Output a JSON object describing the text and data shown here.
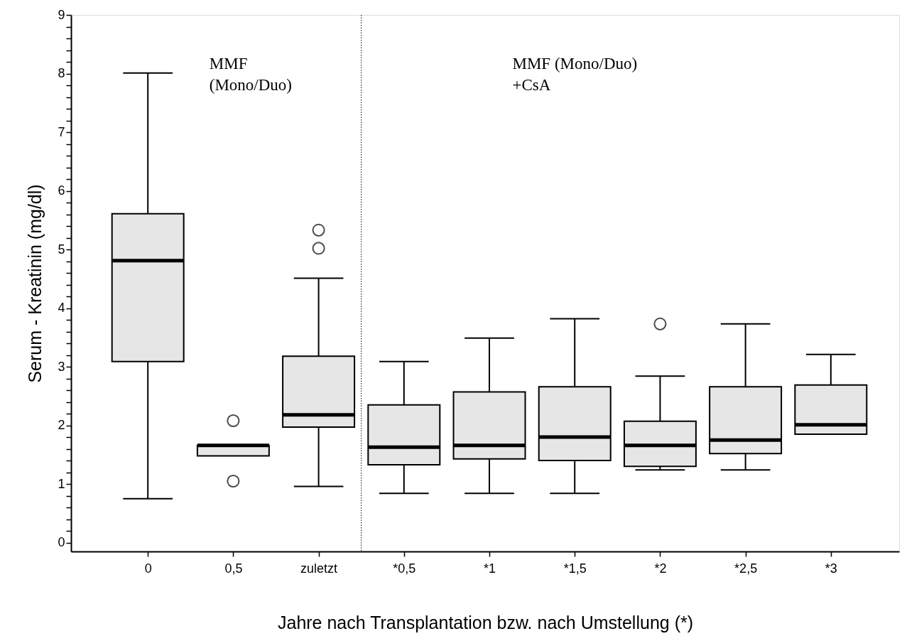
{
  "chart_data": {
    "type": "box",
    "xlabel": "Jahre nach Transplantation bzw. nach Umstellung (*)",
    "ylabel": "Serum - Kreatinin (mg/dl)",
    "categories": [
      "0",
      "0,5",
      "zuletzt",
      "*0,5",
      "*1",
      "*1,5",
      "*2",
      "*2,5",
      "*3"
    ],
    "series": [
      {
        "color": "#e6e6e6",
        "boxes": [
          {
            "low": 0.75,
            "q1": 3.09,
            "median": 4.81,
            "q3": 5.61,
            "high": 8.01
          },
          {
            "low": 1.48,
            "q1": 1.48,
            "median": 1.66,
            "q3": 1.66,
            "high": 1.66,
            "outliers": [
              2.08,
              1.05
            ]
          },
          {
            "low": 0.96,
            "q1": 1.97,
            "median": 2.18,
            "q3": 3.18,
            "high": 4.51,
            "outliers": [
              5.33,
              5.02
            ]
          },
          {
            "low": 0.84,
            "q1": 1.33,
            "median": 1.63,
            "q3": 2.35,
            "high": 3.09
          },
          {
            "low": 0.84,
            "q1": 1.43,
            "median": 1.66,
            "q3": 2.57,
            "high": 3.49
          },
          {
            "low": 0.84,
            "q1": 1.4,
            "median": 1.8,
            "q3": 2.66,
            "high": 3.82
          },
          {
            "low": 1.24,
            "q1": 1.3,
            "median": 1.66,
            "q3": 2.07,
            "high": 2.84,
            "outliers": [
              3.73
            ]
          },
          {
            "low": 1.24,
            "q1": 1.52,
            "median": 1.75,
            "q3": 2.66,
            "high": 3.73
          },
          {
            "low": 1.85,
            "q1": 1.85,
            "median": 2.01,
            "q3": 2.69,
            "high": 3.21
          }
        ]
      }
    ],
    "ylim": [
      -0.15,
      9
    ],
    "yticks": [
      0,
      {
        "value": 0.2,
        "label": null
      },
      {
        "value": 0.4,
        "label": null
      },
      {
        "value": 0.6,
        "label": null
      },
      {
        "value": 0.8,
        "label": null
      },
      1,
      {
        "value": 1.2,
        "label": null
      },
      {
        "value": 1.4,
        "label": null
      },
      {
        "value": 1.6,
        "label": null
      },
      {
        "value": 1.8,
        "label": null
      },
      2,
      {
        "value": 2.2,
        "label": null
      },
      {
        "value": 2.4,
        "label": null
      },
      {
        "value": 2.6,
        "label": null
      },
      {
        "value": 2.8,
        "label": null
      },
      3,
      {
        "value": 3.2,
        "label": null
      },
      {
        "value": 3.4,
        "label": null
      },
      {
        "value": 3.6,
        "label": null
      },
      {
        "value": 3.8,
        "label": null
      },
      4,
      {
        "value": 4.2,
        "label": null
      },
      {
        "value": 4.4,
        "label": null
      },
      {
        "value": 4.6,
        "label": null
      },
      {
        "value": 4.8,
        "label": null
      },
      5,
      {
        "value": 5.2,
        "label": null
      },
      {
        "value": 5.4,
        "label": null
      },
      {
        "value": 5.6,
        "label": null
      },
      {
        "value": 5.8,
        "label": null
      },
      6,
      {
        "value": 6.2,
        "label": null
      },
      {
        "value": 6.4,
        "label": null
      },
      {
        "value": 6.6,
        "label": null
      },
      {
        "value": 6.8,
        "label": null
      },
      7,
      {
        "value": 7.2,
        "label": null
      },
      {
        "value": 7.4,
        "label": null
      },
      {
        "value": 7.6,
        "label": null
      },
      {
        "value": 7.8,
        "label": null
      },
      8,
      {
        "value": 8.2,
        "label": null
      },
      {
        "value": 8.4,
        "label": null
      },
      {
        "value": 8.6,
        "label": null
      },
      {
        "value": 8.8,
        "label": null
      },
      9
    ],
    "grid": false,
    "annotations": [
      "MMF\n(Mono/Duo)",
      "MMF (Mono/Duo)\n+CsA"
    ]
  }
}
